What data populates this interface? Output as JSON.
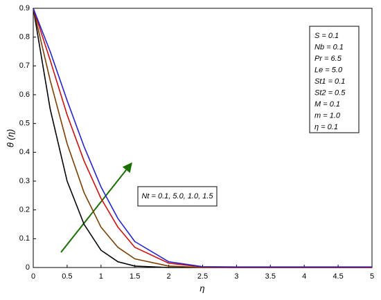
{
  "chart_data": {
    "type": "line",
    "x_label": "η",
    "y_label": "θ (η)",
    "x": [
      0,
      0.25,
      0.5,
      0.75,
      1,
      1.25,
      1.5,
      2,
      2.5,
      3,
      5
    ],
    "series": [
      {
        "color": "#000000",
        "values": [
          0.9,
          0.55,
          0.3,
          0.15,
          0.06,
          0.02,
          0.005,
          0,
          0,
          0,
          0
        ]
      },
      {
        "color": "#7a3c00",
        "values": [
          0.9,
          0.65,
          0.43,
          0.26,
          0.14,
          0.07,
          0.03,
          0.005,
          0,
          0,
          0
        ]
      },
      {
        "color": "#cc1010",
        "values": [
          0.9,
          0.72,
          0.53,
          0.37,
          0.24,
          0.14,
          0.07,
          0.015,
          0.002,
          0,
          0
        ]
      },
      {
        "color": "#2222d0",
        "values": [
          0.9,
          0.75,
          0.58,
          0.42,
          0.28,
          0.17,
          0.09,
          0.02,
          0.003,
          0.002,
          0.002
        ]
      }
    ],
    "xlim": [
      0,
      5
    ],
    "xticks": [
      0,
      0.5,
      1,
      1.5,
      2,
      2.5,
      3,
      3.5,
      4,
      4.5,
      5
    ],
    "ylim": [
      0,
      0.9
    ],
    "yticks": [
      0,
      0.1,
      0.2,
      0.3,
      0.4,
      0.5,
      0.6,
      0.7,
      0.8,
      0.9
    ],
    "grid": false,
    "parameters": [
      "S = 0.1",
      "Nb = 0.1",
      "Pr = 6.5",
      "Le = 5.0",
      "St1 = 0.1",
      "St2 = 0.5",
      "M = 0.1",
      "m = 1.0",
      "η = 0.1"
    ],
    "annotation": "Nt = 0.1, 5.0, 1.0, 1.5"
  }
}
